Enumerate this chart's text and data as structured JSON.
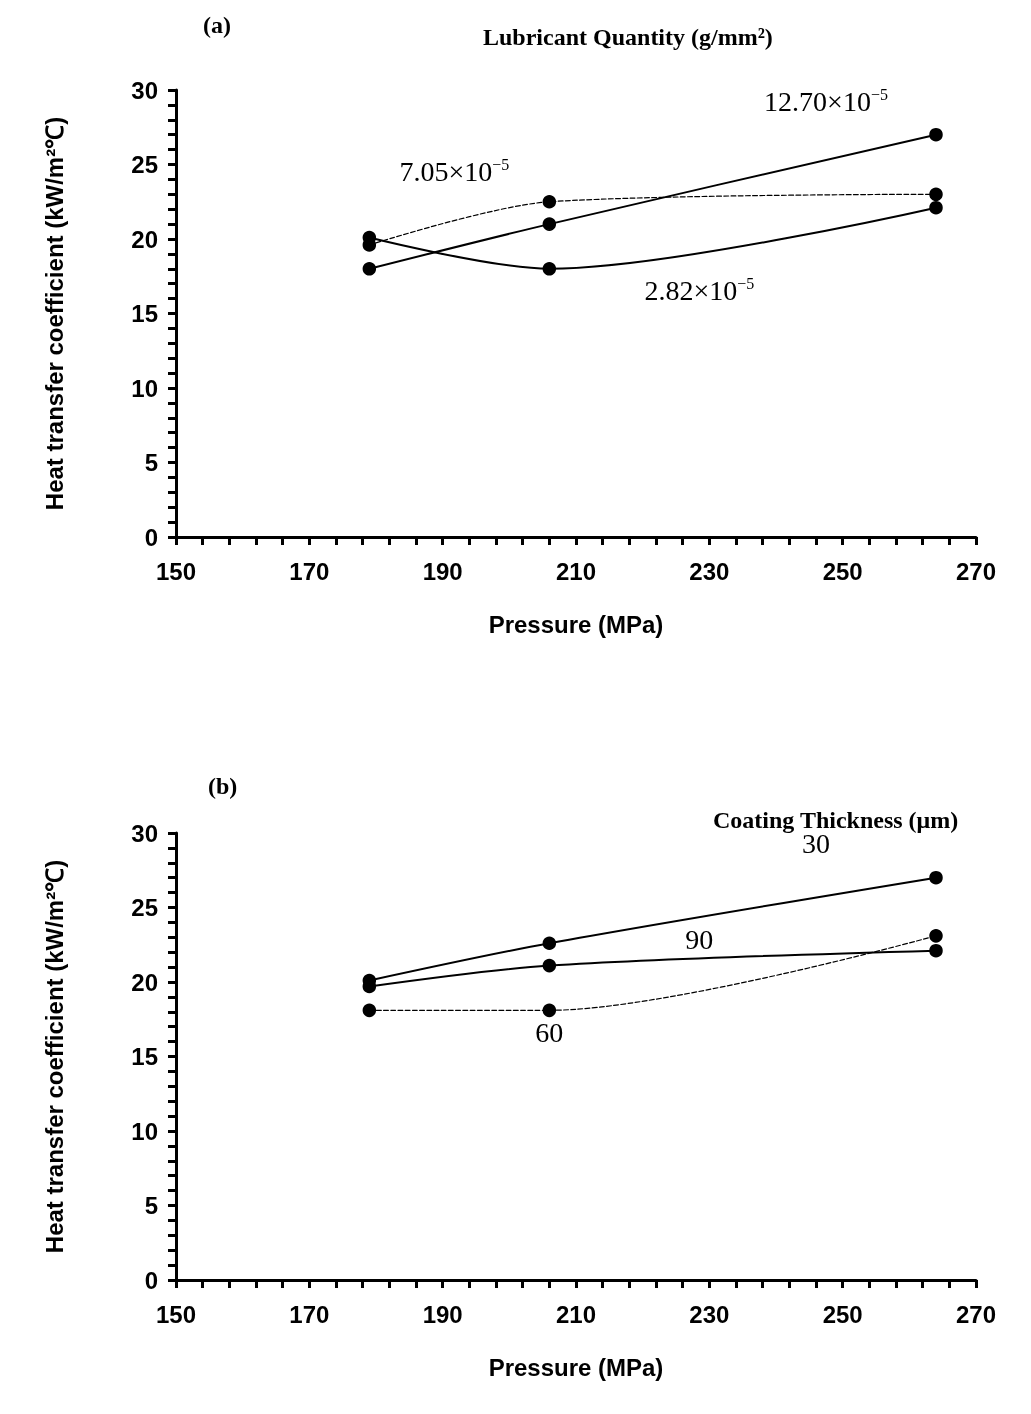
{
  "chart_data": [
    {
      "type": "line",
      "title": "(a)",
      "legend_title": "Lubricant Quantity (g/mm²)",
      "xlabel": "Pressure (MPa)",
      "ylabel": "Heat transfer coefficient (kW/m²℃)",
      "x": [
        179,
        206,
        264
      ],
      "xlim": [
        150,
        270
      ],
      "xticks": [
        150,
        170,
        190,
        210,
        230,
        250,
        270
      ],
      "ylim": [
        0,
        30
      ],
      "yticks": [
        0,
        5,
        10,
        15,
        20,
        25,
        30
      ],
      "grid": false,
      "legend": false,
      "marker": "circle",
      "series": [
        {
          "name": "12.70×10$^{−5}$",
          "color": "#000000",
          "line_style": "solid",
          "values": [
            18.0,
            21.0,
            27.0
          ]
        },
        {
          "name": "7.05×10$^{−5}$",
          "color": "#000000",
          "line_style": "dashed",
          "values": [
            19.6,
            22.5,
            23.0
          ]
        },
        {
          "name": "2.82×10$^{−5}$",
          "color": "#000000",
          "line_style": "solid",
          "values": [
            20.1,
            18.0,
            22.1
          ]
        }
      ]
    },
    {
      "type": "line",
      "title": "(b)",
      "legend_title": "Coating Thickness (μm)",
      "xlabel": "Pressure (MPa)",
      "ylabel": "Heat transfer coefficient (kW/m²℃)",
      "x": [
        179,
        206,
        264
      ],
      "xlim": [
        150,
        270
      ],
      "xticks": [
        150,
        170,
        190,
        210,
        230,
        250,
        270
      ],
      "ylim": [
        0,
        30
      ],
      "yticks": [
        0,
        5,
        10,
        15,
        20,
        25,
        30
      ],
      "grid": false,
      "legend": false,
      "marker": "circle",
      "series": [
        {
          "name": "30",
          "color": "#000000",
          "line_style": "solid",
          "values": [
            20.1,
            22.6,
            27.0
          ]
        },
        {
          "name": "90",
          "color": "#000000",
          "line_style": "solid",
          "values": [
            19.7,
            21.1,
            22.1
          ]
        },
        {
          "name": "60",
          "color": "#000000",
          "line_style": "dashed",
          "values": [
            18.1,
            18.1,
            23.1
          ]
        }
      ]
    }
  ]
}
